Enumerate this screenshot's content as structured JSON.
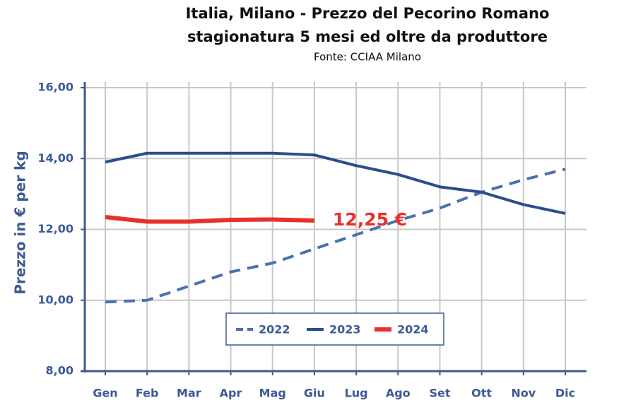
{
  "chart_data": {
    "type": "line",
    "title": "Italia, Milano - Prezzo del Pecorino Romano",
    "subtitle": "stagionatura 5 mesi ed oltre da produttore",
    "source": "Fonte: CCIAA Milano",
    "y_label": "Prezzo in € per kg",
    "categories": [
      "Gen",
      "Feb",
      "Mar",
      "Apr",
      "Mag",
      "Giu",
      "Lug",
      "Ago",
      "Set",
      "Ott",
      "Nov",
      "Dic"
    ],
    "series": [
      {
        "name": "2022",
        "color": "#4a72b0",
        "dashed": true,
        "values": [
          9.95,
          10.0,
          10.4,
          10.8,
          11.05,
          11.45,
          11.85,
          12.25,
          12.6,
          13.05,
          13.4,
          13.7
        ]
      },
      {
        "name": "2023",
        "color": "#2b4d8f",
        "values": [
          13.9,
          14.15,
          14.15,
          14.15,
          14.15,
          14.1,
          13.8,
          13.55,
          13.2,
          13.05,
          12.7,
          12.45
        ]
      },
      {
        "name": "2024",
        "color": "#e8302a",
        "values": [
          12.35,
          12.22,
          12.22,
          12.27,
          12.28,
          12.25,
          null,
          null,
          null,
          null,
          null,
          null
        ],
        "value_labels": [
          null,
          null,
          null,
          null,
          null,
          "12,25 €",
          null,
          null,
          null,
          null,
          null,
          null
        ]
      }
    ],
    "ylim": [
      8,
      16
    ],
    "yticks": [
      {
        "value": 8,
        "label": "8,00"
      },
      {
        "value": 10,
        "label": "10,00"
      },
      {
        "value": 12,
        "label": "12,00"
      },
      {
        "value": 14,
        "label": "14,00"
      },
      {
        "value": 16,
        "label": "16,00"
      }
    ],
    "grid": true
  }
}
